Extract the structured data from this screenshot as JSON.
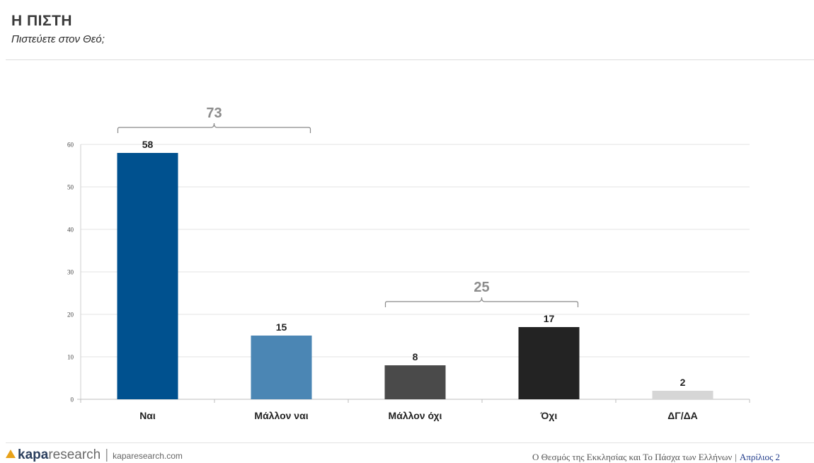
{
  "title": "Η ΠΙΣΤΗ",
  "subtitle": "Πιστεύετε στον Θεό;",
  "chart_data": {
    "type": "bar",
    "categories": [
      "Ναι",
      "Μάλλον ναι",
      "Μάλλον όχι",
      "Όχι",
      "ΔΓ/ΔΑ"
    ],
    "values": [
      58,
      15,
      8,
      17,
      2
    ],
    "colors": [
      "#00518f",
      "#4b86b4",
      "#4a4a4a",
      "#232323",
      "#d6d6d6"
    ],
    "ylim": [
      0,
      60
    ],
    "yticks": [
      0,
      10,
      20,
      30,
      40,
      50,
      60
    ],
    "grid": true,
    "groups": [
      {
        "label": "73",
        "from": 0,
        "to": 1
      },
      {
        "label": "25",
        "from": 2,
        "to": 3
      }
    ]
  },
  "footer": {
    "logo_bold": "kapa",
    "logo_light": "research",
    "separator": "|",
    "url": "kaparesearch.com",
    "caption": "Ο Θεσμός της Εκκλησίας και Το Πάσχα των Ελλήνων",
    "bar": "|",
    "month": "Απρίλιος 2"
  }
}
